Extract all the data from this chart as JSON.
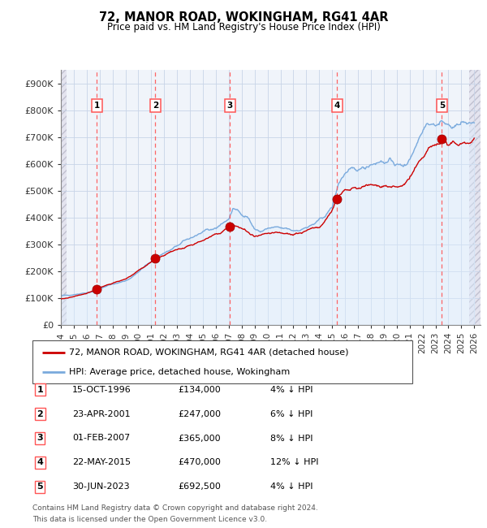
{
  "title": "72, MANOR ROAD, WOKINGHAM, RG41 4AR",
  "subtitle": "Price paid vs. HM Land Registry's House Price Index (HPI)",
  "transactions": [
    {
      "num": 1,
      "date": "1996-10-15",
      "price": 134000,
      "pct": "4%",
      "x_year": 1996.79
    },
    {
      "num": 2,
      "date": "2001-04-23",
      "price": 247000,
      "pct": "6%",
      "x_year": 2001.31
    },
    {
      "num": 3,
      "date": "2007-02-01",
      "price": 365000,
      "pct": "8%",
      "x_year": 2007.08
    },
    {
      "num": 4,
      "date": "2015-05-22",
      "price": 470000,
      "pct": "12%",
      "x_year": 2015.39
    },
    {
      "num": 5,
      "date": "2023-06-30",
      "price": 692500,
      "pct": "4%",
      "x_year": 2023.5
    }
  ],
  "legend_house": "72, MANOR ROAD, WOKINGHAM, RG41 4AR (detached house)",
  "legend_hpi": "HPI: Average price, detached house, Wokingham",
  "footer1": "Contains HM Land Registry data © Crown copyright and database right 2024.",
  "footer2": "This data is licensed under the Open Government Licence v3.0.",
  "ylim": [
    0,
    950000
  ],
  "xlim_start": 1994.0,
  "xlim_end": 2026.5,
  "yticks": [
    0,
    100000,
    200000,
    300000,
    400000,
    500000,
    600000,
    700000,
    800000,
    900000
  ],
  "ytick_labels": [
    "£0",
    "£100K",
    "£200K",
    "£300K",
    "£400K",
    "£500K",
    "£600K",
    "£700K",
    "£800K",
    "£900K"
  ],
  "xtick_years": [
    1994,
    1995,
    1996,
    1997,
    1998,
    1999,
    2000,
    2001,
    2002,
    2003,
    2004,
    2005,
    2006,
    2007,
    2008,
    2009,
    2010,
    2011,
    2012,
    2013,
    2014,
    2015,
    2016,
    2017,
    2018,
    2019,
    2020,
    2021,
    2022,
    2023,
    2024,
    2025,
    2026
  ],
  "house_color": "#cc0000",
  "hpi_color": "#7aaadd",
  "hpi_fill_color": "#ddeeff",
  "transaction_marker_color": "#cc0000",
  "dashed_line_color": "#ff5555",
  "hatch_color": "#ccccdd",
  "table_rows": [
    [
      "1",
      "15-OCT-1996",
      "£134,000",
      "4% ↓ HPI"
    ],
    [
      "2",
      "23-APR-2001",
      "£247,000",
      "6% ↓ HPI"
    ],
    [
      "3",
      "01-FEB-2007",
      "£365,000",
      "8% ↓ HPI"
    ],
    [
      "4",
      "22-MAY-2015",
      "£470,000",
      "12% ↓ HPI"
    ],
    [
      "5",
      "30-JUN-2023",
      "£692,500",
      "4% ↓ HPI"
    ]
  ]
}
